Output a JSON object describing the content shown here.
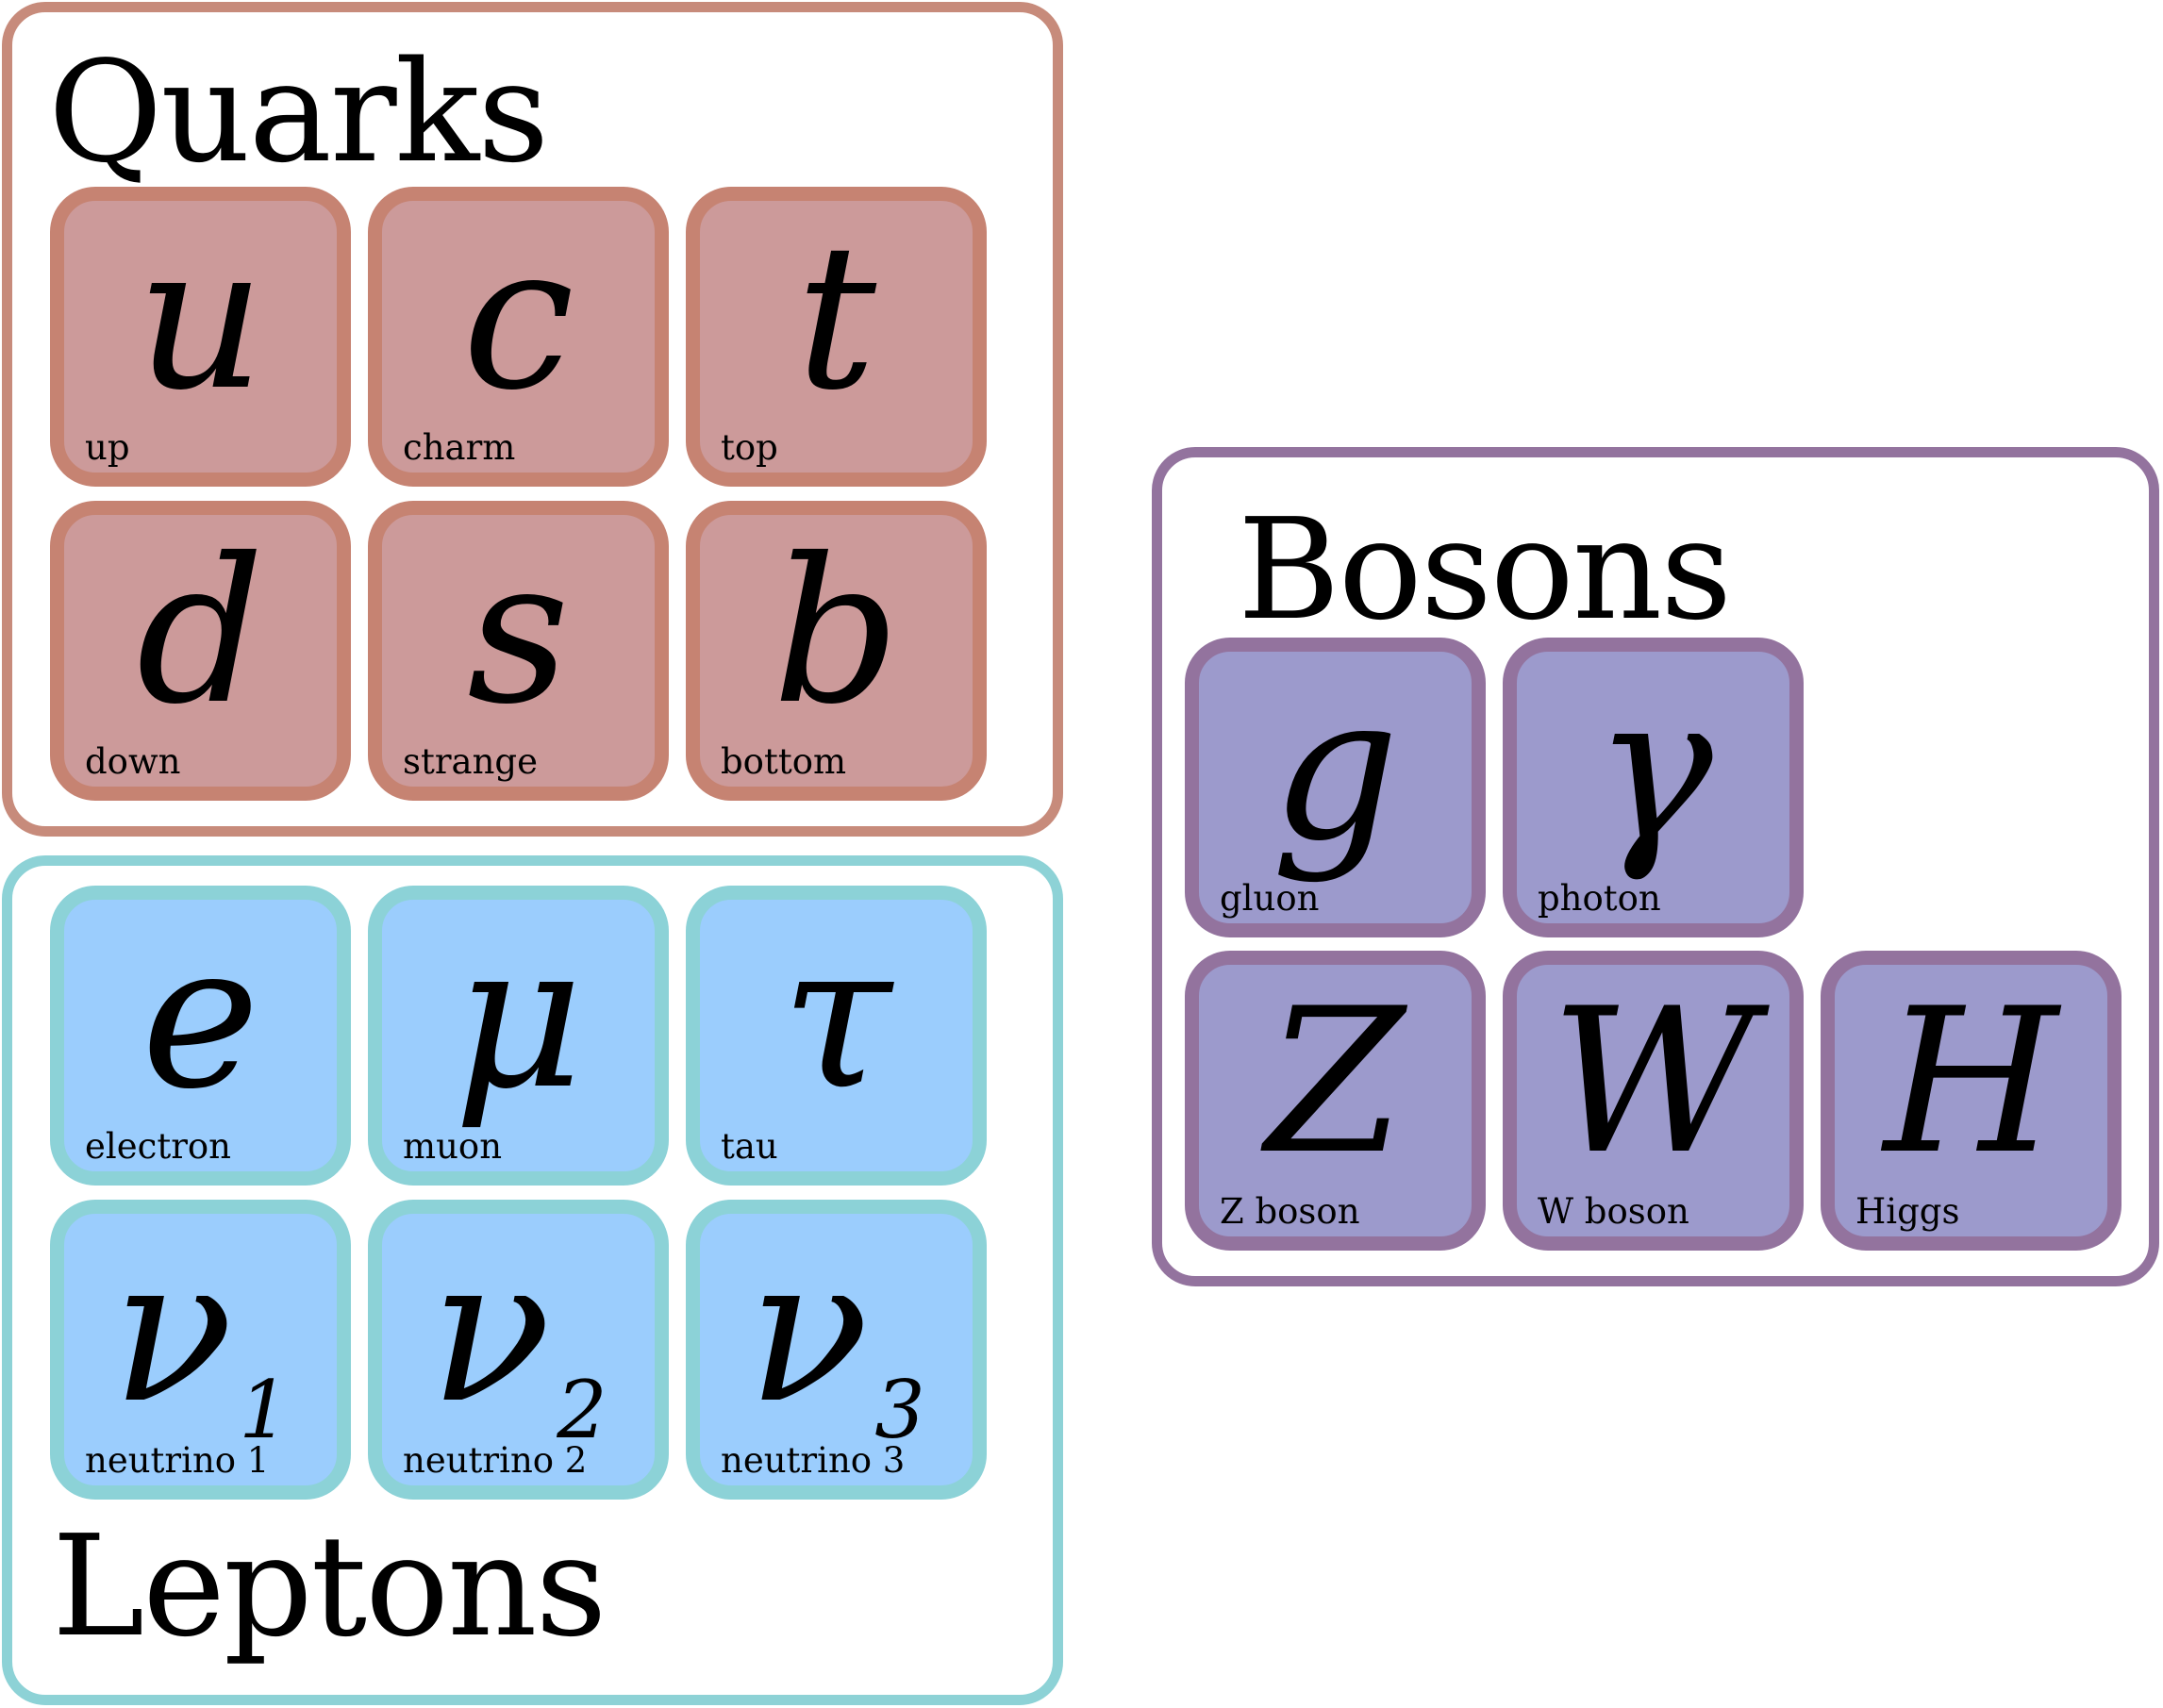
{
  "groups": {
    "quarks": {
      "title": "Quarks",
      "particles": [
        {
          "symbol": "u",
          "name": "up"
        },
        {
          "symbol": "c",
          "name": "charm"
        },
        {
          "symbol": "t",
          "name": "top"
        },
        {
          "symbol": "d",
          "name": "down"
        },
        {
          "symbol": "s",
          "name": "strange"
        },
        {
          "symbol": "b",
          "name": "bottom"
        }
      ]
    },
    "leptons": {
      "title": "Leptons",
      "particles": [
        {
          "symbol": "e",
          "name": "electron"
        },
        {
          "symbol": "μ",
          "name": "muon"
        },
        {
          "symbol": "τ",
          "name": "tau"
        },
        {
          "symbol": "ν",
          "subscript": "1",
          "name": "neutrino 1"
        },
        {
          "symbol": "ν",
          "subscript": "2",
          "name": "neutrino 2"
        },
        {
          "symbol": "ν",
          "subscript": "3",
          "name": "neutrino 3"
        }
      ]
    },
    "bosons": {
      "title": "Bosons",
      "particles": [
        {
          "symbol": "g",
          "name": "gluon"
        },
        {
          "symbol": "γ",
          "name": "photon"
        },
        {
          "symbol": "Z",
          "name": "Z boson"
        },
        {
          "symbol": "W",
          "name": "W boson"
        },
        {
          "symbol": "H",
          "name": "Higgs"
        }
      ]
    }
  },
  "colors": {
    "quark_fill": "#cc9a9a",
    "quark_border": "#c68372",
    "lepton_fill": "#9bcdfd",
    "lepton_border": "#8cd2d7",
    "boson_fill": "#9c9acc",
    "boson_border": "#93739e"
  }
}
